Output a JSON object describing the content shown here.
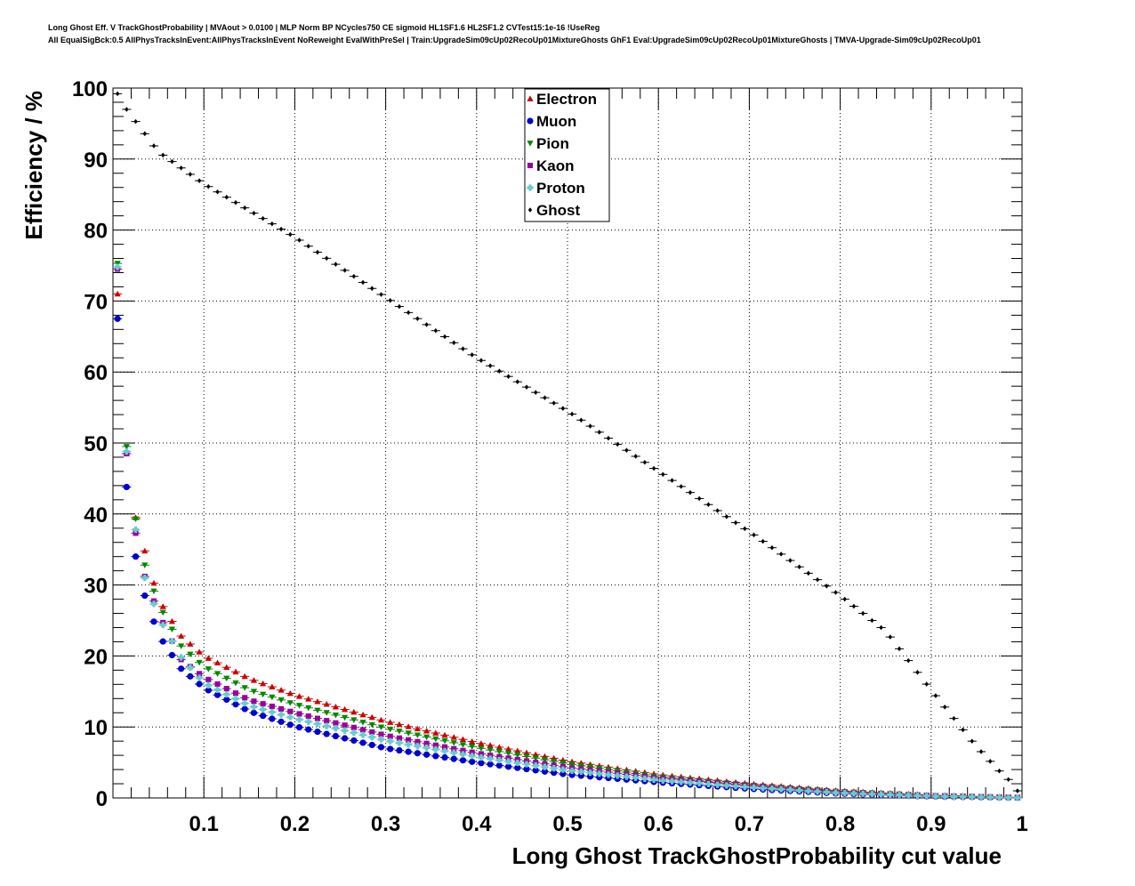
{
  "chart_data": {
    "type": "scatter",
    "title": "Long Ghost Eff. V TrackGhostProbability | MVAout > 0.0100 | MLP Norm BP NCycles750 CE sigmoid HL1SF1.6 HL2SF1.2 CVTest15:1e-16 !UseReg",
    "subtitle": "All EqualSigBck:0.5 AllPhysTracksInEvent:AllPhysTracksInEvent NoReweight EvalWithPreSel | Train:UpgradeSim09cUp02RecoUp01MixtureGhosts GhF1 Eval:UpgradeSim09cUp02RecoUp01MixtureGhosts | TMVA-Upgrade-Sim09cUp02RecoUp01",
    "xlabel": "Long Ghost TrackGhostProbability cut value",
    "ylabel": "Efficiency / %",
    "xlim": [
      0,
      1
    ],
    "ylim": [
      0,
      100
    ],
    "x_ticks": [
      "0.1",
      "0.2",
      "0.3",
      "0.4",
      "0.5",
      "0.6",
      "0.7",
      "0.8",
      "0.9",
      "1"
    ],
    "y_ticks": [
      "0",
      "10",
      "20",
      "30",
      "40",
      "50",
      "60",
      "70",
      "80",
      "90",
      "100"
    ],
    "grid": true,
    "legend_position": "top-center",
    "x_step": 0.01,
    "series": [
      {
        "name": "Electron",
        "color": "#cc0000",
        "marker": "triangle-up",
        "anchors": [
          [
            0.005,
            71
          ],
          [
            0.015,
            48.5
          ],
          [
            0.025,
            39.5
          ],
          [
            0.035,
            34.8
          ],
          [
            0.05,
            28
          ],
          [
            0.075,
            22.8
          ],
          [
            0.1,
            20
          ],
          [
            0.15,
            16.8
          ],
          [
            0.2,
            14.5
          ],
          [
            0.3,
            10.8
          ],
          [
            0.4,
            7.8
          ],
          [
            0.5,
            5.2
          ],
          [
            0.6,
            3.3
          ],
          [
            0.7,
            2.0
          ],
          [
            0.8,
            1.0
          ],
          [
            0.9,
            0.4
          ],
          [
            1.0,
            0.05
          ]
        ]
      },
      {
        "name": "Muon",
        "color": "#0000cc",
        "marker": "circle",
        "anchors": [
          [
            0.005,
            67.5
          ],
          [
            0.015,
            43.8
          ],
          [
            0.025,
            34
          ],
          [
            0.035,
            28.5
          ],
          [
            0.05,
            23
          ],
          [
            0.075,
            18.2
          ],
          [
            0.1,
            15.5
          ],
          [
            0.15,
            12.2
          ],
          [
            0.2,
            10.1
          ],
          [
            0.3,
            7.0
          ],
          [
            0.4,
            5.0
          ],
          [
            0.5,
            3.3
          ],
          [
            0.6,
            2.2
          ],
          [
            0.7,
            1.3
          ],
          [
            0.8,
            0.6
          ],
          [
            0.9,
            0.2
          ],
          [
            1.0,
            0.0
          ]
        ]
      },
      {
        "name": "Pion",
        "color": "#008800",
        "marker": "triangle-down",
        "anchors": [
          [
            0.005,
            75.3
          ],
          [
            0.015,
            49.5
          ],
          [
            0.025,
            39.3
          ],
          [
            0.035,
            32.8
          ],
          [
            0.05,
            27.3
          ],
          [
            0.075,
            21.4
          ],
          [
            0.1,
            18.5
          ],
          [
            0.15,
            15.2
          ],
          [
            0.2,
            13.2
          ],
          [
            0.3,
            9.8
          ],
          [
            0.4,
            7.1
          ],
          [
            0.5,
            4.8
          ],
          [
            0.6,
            3.0
          ],
          [
            0.7,
            1.8
          ],
          [
            0.8,
            0.9
          ],
          [
            0.9,
            0.35
          ],
          [
            1.0,
            0.05
          ]
        ]
      },
      {
        "name": "Kaon",
        "color": "#990099",
        "marker": "square",
        "anchors": [
          [
            0.005,
            74.5
          ],
          [
            0.015,
            48.5
          ],
          [
            0.025,
            37.3
          ],
          [
            0.035,
            31.2
          ],
          [
            0.05,
            26
          ],
          [
            0.075,
            19.5
          ],
          [
            0.1,
            17
          ],
          [
            0.15,
            13.8
          ],
          [
            0.2,
            12.0
          ],
          [
            0.3,
            8.8
          ],
          [
            0.4,
            6.3
          ],
          [
            0.5,
            4.3
          ],
          [
            0.6,
            2.8
          ],
          [
            0.7,
            1.7
          ],
          [
            0.8,
            0.8
          ],
          [
            0.9,
            0.3
          ],
          [
            1.0,
            0.05
          ]
        ]
      },
      {
        "name": "Proton",
        "color": "#66cccc",
        "marker": "cross",
        "anchors": [
          [
            0.005,
            74.8
          ],
          [
            0.015,
            48.8
          ],
          [
            0.025,
            37.8
          ],
          [
            0.035,
            31
          ],
          [
            0.05,
            25.5
          ],
          [
            0.075,
            19.8
          ],
          [
            0.1,
            16.2
          ],
          [
            0.15,
            13
          ],
          [
            0.2,
            11.2
          ],
          [
            0.3,
            8.1
          ],
          [
            0.4,
            5.8
          ],
          [
            0.5,
            3.9
          ],
          [
            0.6,
            2.5
          ],
          [
            0.7,
            1.5
          ],
          [
            0.8,
            0.7
          ],
          [
            0.9,
            0.25
          ],
          [
            1.0,
            0.0
          ]
        ]
      },
      {
        "name": "Ghost",
        "color": "#000000",
        "marker": "diamond",
        "anchors": [
          [
            0.005,
            99.2
          ],
          [
            0.015,
            97
          ],
          [
            0.05,
            91
          ],
          [
            0.1,
            86.5
          ],
          [
            0.2,
            79
          ],
          [
            0.3,
            70.5
          ],
          [
            0.4,
            62
          ],
          [
            0.5,
            54.5
          ],
          [
            0.6,
            46
          ],
          [
            0.7,
            37.5
          ],
          [
            0.8,
            28.5
          ],
          [
            0.85,
            23.5
          ],
          [
            0.9,
            15.2
          ],
          [
            0.95,
            7.2
          ],
          [
            0.975,
            3.8
          ],
          [
            0.985,
            2.6
          ],
          [
            0.995,
            1.0
          ]
        ]
      }
    ]
  }
}
